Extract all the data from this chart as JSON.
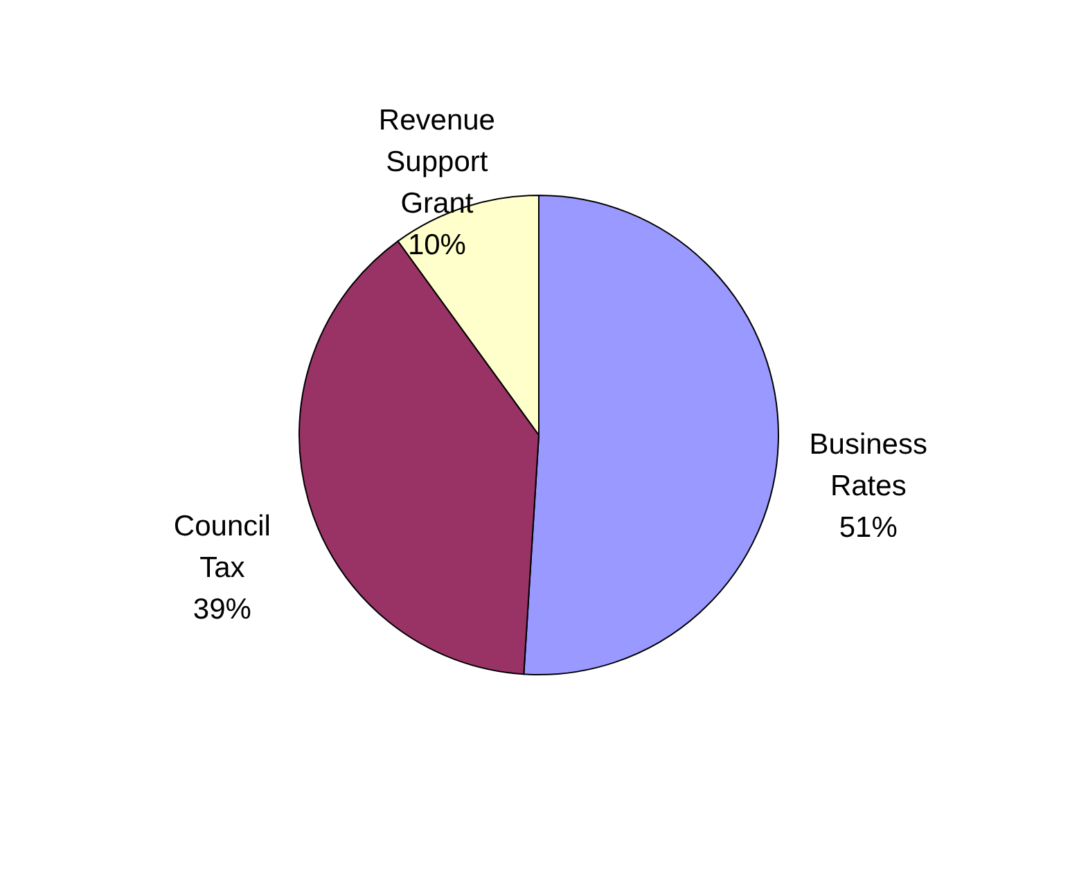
{
  "chart_data": {
    "type": "pie",
    "categories": [
      "Business Rates",
      "Council Tax",
      "Revenue Support Grant"
    ],
    "values": [
      51,
      39,
      10
    ],
    "colors": [
      "#9999ff",
      "#993366",
      "#ffffcc"
    ],
    "value_labels": [
      "51%",
      "39%",
      "10%"
    ],
    "legend": false
  }
}
